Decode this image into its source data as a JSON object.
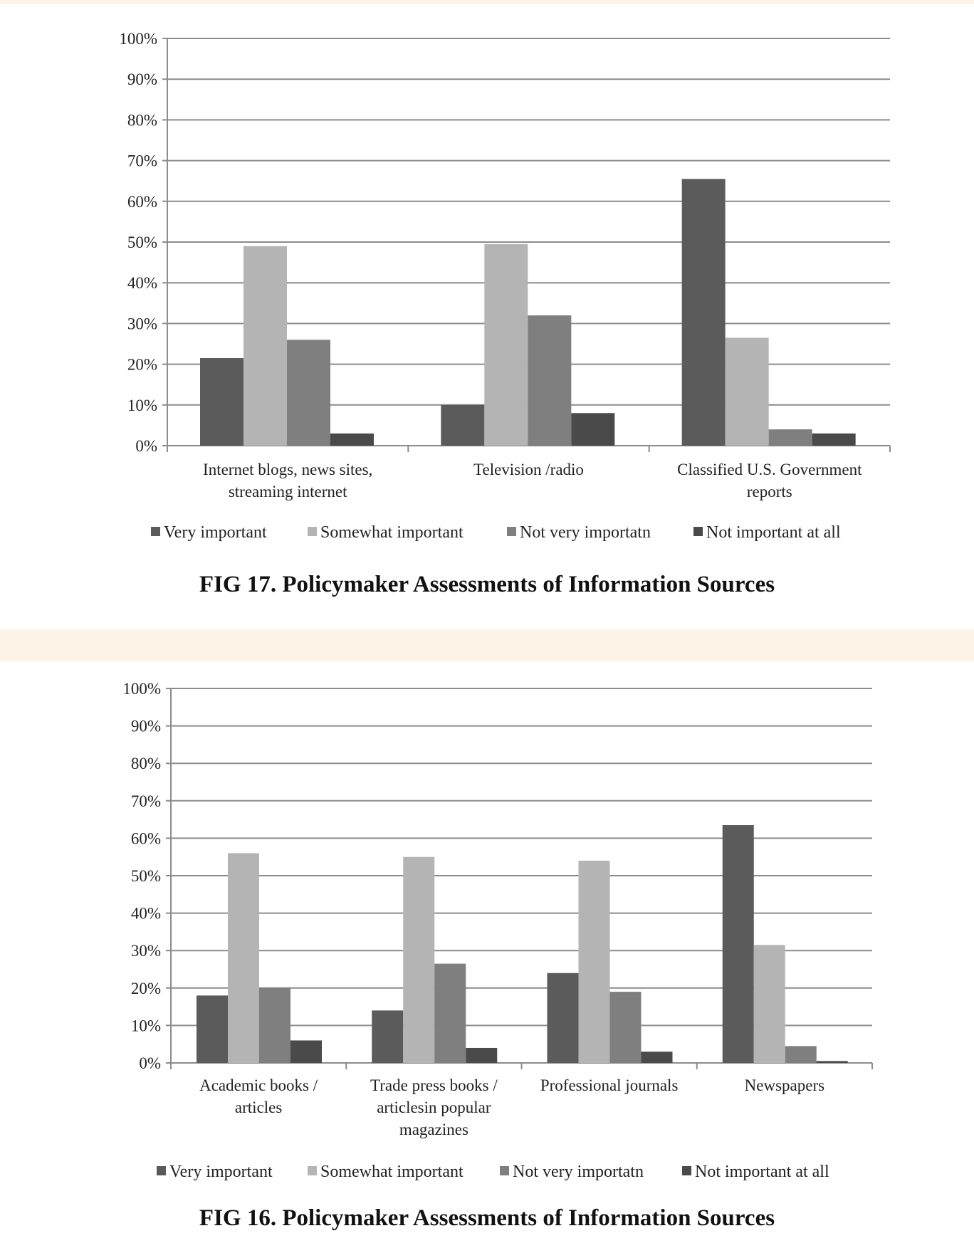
{
  "chart_data": [
    {
      "type": "bar",
      "caption": "FIG 17.  Policymaker Assessments of Information Sources",
      "categories": [
        [
          "Internet blogs, news sites,",
          "streaming internet"
        ],
        [
          "Television /radio"
        ],
        [
          "Classified U.S. Government",
          "reports"
        ]
      ],
      "series": [
        {
          "name": "Very important",
          "color": "#5b5b5b",
          "values": [
            21.5,
            10,
            65.5
          ]
        },
        {
          "name": "Somewhat important",
          "color": "#b4b4b4",
          "values": [
            49,
            49.5,
            26.5
          ]
        },
        {
          "name": "Not very importatn",
          "color": "#7f7f7f",
          "values": [
            26,
            32,
            4
          ]
        },
        {
          "name": "Not important at all",
          "color": "#4a4a4a",
          "values": [
            3,
            8,
            3
          ]
        }
      ],
      "y_ticks": [
        "0%",
        "10%",
        "20%",
        "30%",
        "40%",
        "50%",
        "60%",
        "70%",
        "80%",
        "90%",
        "100%"
      ],
      "ylim": [
        0,
        100
      ],
      "grid": true,
      "legend": "bottom"
    },
    {
      "type": "bar",
      "caption": "FIG 16.  Policymaker Assessments of Information Sources",
      "categories": [
        [
          "Academic books /",
          "articles"
        ],
        [
          "Trade press books /",
          "articlesin popular",
          "magazines"
        ],
        [
          "Professional journals"
        ],
        [
          "Newspapers"
        ]
      ],
      "series": [
        {
          "name": "Very important",
          "color": "#5b5b5b",
          "values": [
            18,
            14,
            24,
            63.5
          ]
        },
        {
          "name": "Somewhat important",
          "color": "#b4b4b4",
          "values": [
            56,
            55,
            54,
            31.5
          ]
        },
        {
          "name": "Not very importatn",
          "color": "#7f7f7f",
          "values": [
            20,
            26.5,
            19,
            4.5
          ]
        },
        {
          "name": "Not important at all",
          "color": "#4a4a4a",
          "values": [
            6,
            4,
            3,
            0.5
          ]
        }
      ],
      "y_ticks": [
        "0%",
        "10%",
        "20%",
        "30%",
        "40%",
        "50%",
        "60%",
        "70%",
        "80%",
        "90%",
        "100%"
      ],
      "ylim": [
        0,
        100
      ],
      "grid": true,
      "legend": "bottom"
    }
  ]
}
